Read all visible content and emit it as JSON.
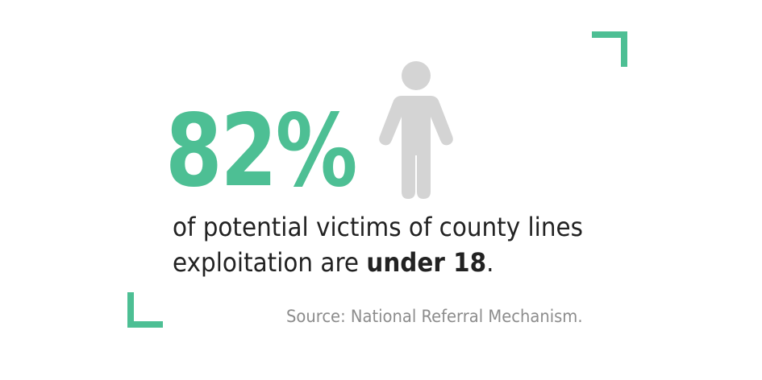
{
  "colors": {
    "accent": "#4dbf94",
    "icon": "#d4d4d4",
    "text": "#222222",
    "muted": "#8c8c8c",
    "background": "#ffffff"
  },
  "icon": "child-figure-icon",
  "stat": {
    "value": "82%"
  },
  "description": {
    "text_start": "of potential victims of county lines exploitation are ",
    "highlight": "under 18",
    "text_end": "."
  },
  "source": "Source: National Referral Mechanism."
}
